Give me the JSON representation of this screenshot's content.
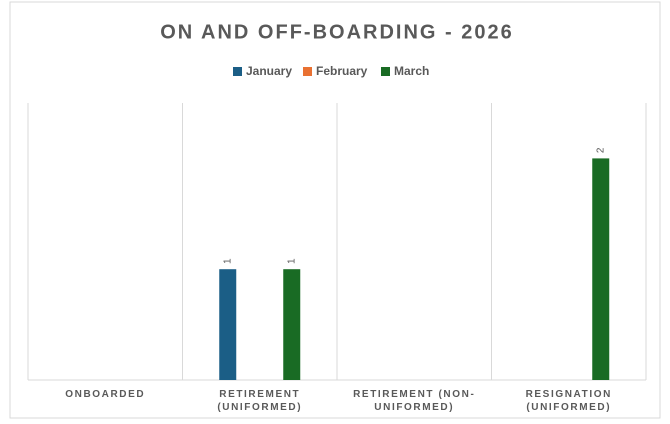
{
  "chart_data": {
    "type": "bar",
    "title": "ON AND OFF-BOARDING - 2026",
    "categories": [
      "ONBOARDED",
      "RETIREMENT (UNIFORMED)",
      "RETIREMENT (NON-UNIFORMED)",
      "RESIGNATION (UNIFORMED)"
    ],
    "series": [
      {
        "name": "January",
        "color": "#1b5e86",
        "values": [
          null,
          1,
          null,
          null
        ]
      },
      {
        "name": "February",
        "color": "#e97132",
        "values": [
          null,
          null,
          null,
          null
        ]
      },
      {
        "name": "March",
        "color": "#196b24",
        "values": [
          null,
          1,
          null,
          2
        ]
      }
    ],
    "ylim": [
      0,
      2.5
    ],
    "legend": "top",
    "data_labels": true
  }
}
